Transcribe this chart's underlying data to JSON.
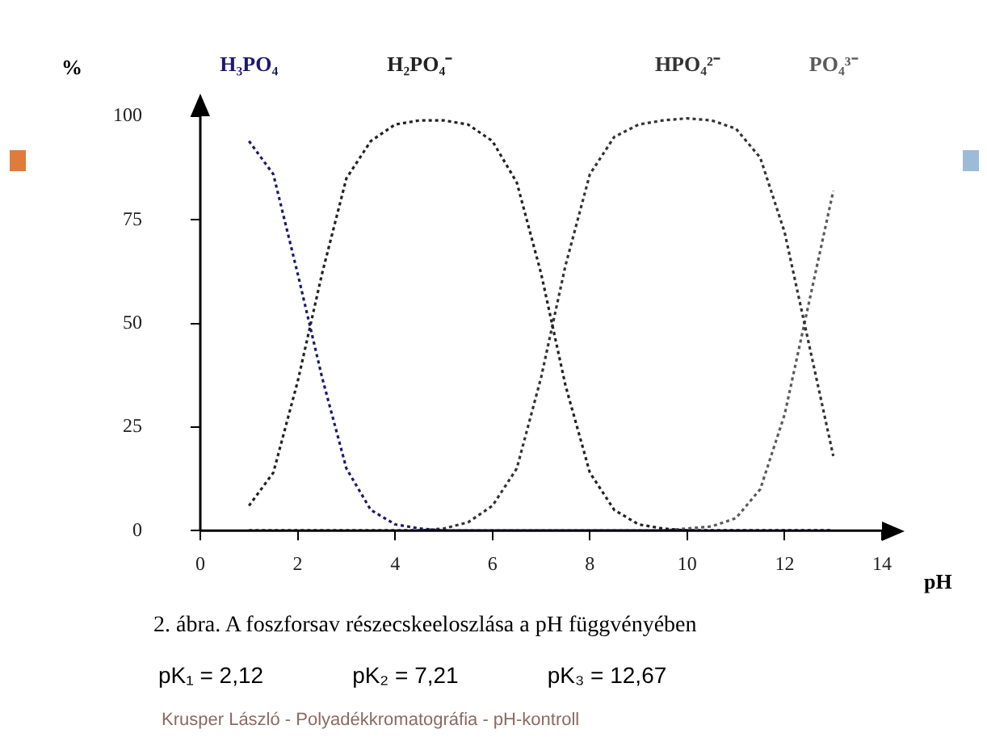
{
  "chart_data": {
    "type": "line",
    "title": "2. ábra. A foszforsav részecskeeloszlása a pH függvényében",
    "xlabel": "pH",
    "ylabel": "%",
    "x": [
      1,
      1.5,
      2,
      2.5,
      3,
      3.5,
      4,
      4.5,
      5,
      5.5,
      6,
      6.5,
      7,
      7.5,
      8,
      8.5,
      9,
      9.5,
      10,
      10.5,
      11,
      11.5,
      12,
      12.5,
      13
    ],
    "series": [
      {
        "name": "H₃PO₄",
        "color": "#1a1a70",
        "values": [
          94,
          86,
          62,
          37,
          15,
          5,
          1.5,
          0.5,
          0,
          0,
          0,
          0,
          0,
          0,
          0,
          0,
          0,
          0,
          0,
          0,
          0,
          0,
          0,
          0,
          0
        ]
      },
      {
        "name": "H₂PO₄⁻",
        "color": "#222222",
        "values": [
          6,
          14,
          36,
          62,
          85,
          94,
          98,
          99,
          99,
          98,
          94,
          84,
          62,
          35,
          14,
          5,
          1.5,
          0.5,
          0,
          0,
          0,
          0,
          0,
          0,
          0
        ]
      },
      {
        "name": "HPO₄²⁻",
        "color": "#333333",
        "values": [
          0,
          0,
          0,
          0,
          0,
          0,
          0,
          0,
          0.5,
          2,
          6,
          15,
          37,
          64,
          86,
          95,
          98,
          99,
          99.5,
          99,
          97,
          90,
          72,
          45,
          18
        ]
      },
      {
        "name": "PO₄³⁻",
        "color": "#5a5a5a",
        "values": [
          0,
          0,
          0,
          0,
          0,
          0,
          0,
          0,
          0,
          0,
          0,
          0,
          0,
          0,
          0,
          0,
          0,
          0,
          0.5,
          1,
          3,
          10,
          28,
          55,
          82
        ]
      }
    ],
    "xlim": [
      0,
      14
    ],
    "xticks": [
      0,
      2,
      4,
      6,
      8,
      10,
      12,
      14
    ],
    "ylim": [
      0,
      100
    ],
    "yticks": [
      0,
      25,
      50,
      75,
      100
    ],
    "grid": false,
    "legend": false,
    "marker": "none",
    "line_style": "dotted",
    "annotations": [
      "pK₁ = 2,12",
      "pK₂ = 7,21",
      "pK₃ = 12,67",
      "Krusper László - Polyadékkromatográfia - pH-kontroll"
    ]
  }
}
